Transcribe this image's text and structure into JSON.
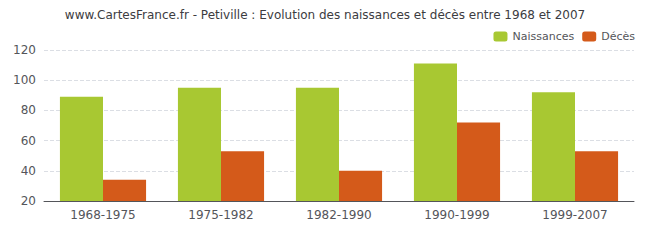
{
  "chart_data": {
    "type": "bar",
    "title": "www.CartesFrance.fr - Petiville : Evolution des naissances et décès entre 1968 et 2007",
    "categories": [
      "1968-1975",
      "1975-1982",
      "1982-1990",
      "1990-1999",
      "1999-2007"
    ],
    "series": [
      {
        "name": "Naissances",
        "color": "#a8c832",
        "values": [
          89,
          95,
          95,
          111,
          92
        ]
      },
      {
        "name": "Décès",
        "color": "#d45a1a",
        "values": [
          34,
          53,
          40,
          72,
          53
        ]
      }
    ],
    "ylim": [
      20,
      120
    ],
    "yticks": [
      20,
      40,
      60,
      80,
      100,
      120
    ],
    "grid": true,
    "legend": "upper right"
  }
}
